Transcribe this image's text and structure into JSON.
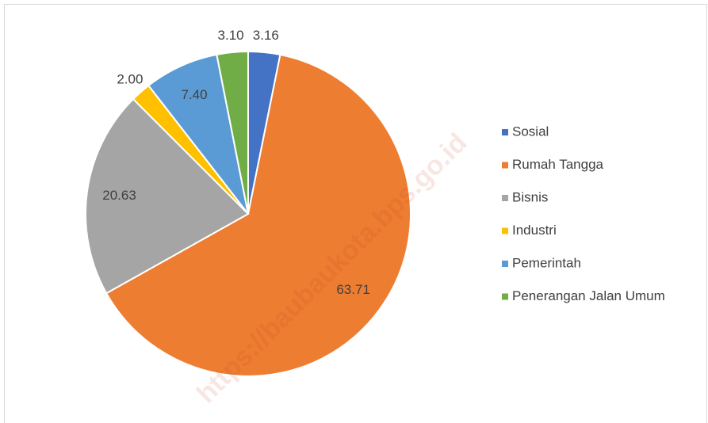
{
  "chart_data": {
    "type": "pie",
    "categories": [
      "Sosial",
      "Rumah Tangga",
      "Bisnis",
      "Industri",
      "Pemerintah",
      "Penerangan Jalan Umum"
    ],
    "values": [
      3.16,
      63.71,
      20.63,
      2.0,
      7.4,
      3.1
    ],
    "value_labels": [
      "3.16",
      "63.71",
      "20.63",
      "2.00",
      "7.40",
      "3.10"
    ],
    "colors": [
      "#4472c4",
      "#ed7d31",
      "#a5a5a5",
      "#ffc000",
      "#5b9bd5",
      "#70ad47"
    ],
    "legend": "right",
    "watermark": "https://baubaukota.bps.go.id"
  }
}
